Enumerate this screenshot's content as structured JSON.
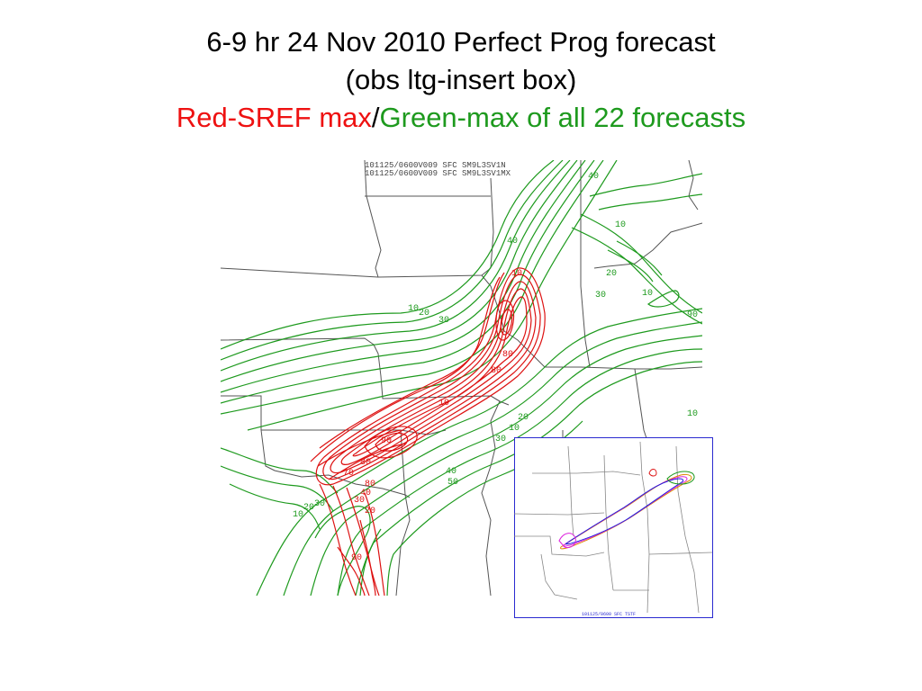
{
  "slide": {
    "title_line1": "6-9 hr 24 Nov 2010 Perfect  Prog forecast",
    "title_line2": "(obs ltg-insert box)",
    "title_line3_red": "Red-SREF max",
    "title_line3_sep": "/",
    "title_line3_green": "Green-max of all 22 forecasts"
  },
  "map": {
    "header_line1": "101125/0600V009   SFC   SM9L3SV1N",
    "header_line2": "101125/0600V009   SFC   SM9L3SV1MX",
    "colors": {
      "green": "#1e9a1e",
      "red": "#dd1111",
      "border": "#555555"
    },
    "contour_labels_green": [
      "10",
      "20",
      "30",
      "40",
      "40",
      "10",
      "20",
      "30",
      "10",
      "90",
      "10",
      "20",
      "30",
      "40",
      "50",
      "10",
      "20",
      "30",
      "40",
      "10"
    ],
    "contour_labels_red": [
      "10",
      "80",
      "80",
      "10",
      "90",
      "80",
      "70",
      "80",
      "20",
      "30",
      "40",
      "90"
    ]
  },
  "inset": {
    "footer": "101125/0600   SFC   TSTF",
    "colors": {
      "frame": "#2a2ad0"
    }
  }
}
